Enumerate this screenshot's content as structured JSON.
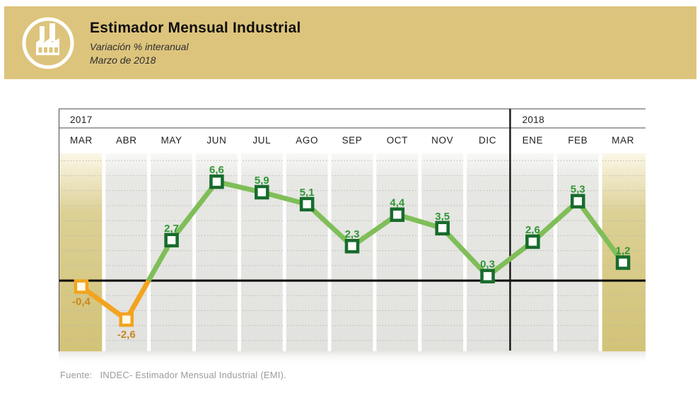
{
  "header": {
    "title": "Estimador Mensual Industrial",
    "subtitle": "Variación % interanual",
    "period": "Marzo de 2018",
    "banner_color": "#DDC47D",
    "icon": "factory-icon"
  },
  "chart_data": {
    "type": "line",
    "title": "Estimador Mensual Industrial",
    "subtitle": "Variación % interanual",
    "unit": "%",
    "categories": [
      "MAR",
      "ABR",
      "MAY",
      "JUN",
      "JUL",
      "AGO",
      "SEP",
      "OCT",
      "NOV",
      "DIC",
      "ENE",
      "FEB",
      "MAR"
    ],
    "year_groups": [
      {
        "label": "2017",
        "months": [
          "MAR",
          "ABR",
          "MAY",
          "JUN",
          "JUL",
          "AGO",
          "SEP",
          "OCT",
          "NOV",
          "DIC"
        ]
      },
      {
        "label": "2018",
        "months": [
          "ENE",
          "FEB",
          "MAR"
        ]
      }
    ],
    "values": [
      -0.4,
      -2.6,
      2.7,
      6.6,
      5.9,
      5.1,
      2.3,
      4.4,
      3.5,
      0.3,
      2.6,
      5.3,
      1.2
    ],
    "ylim": [
      -4.7,
      8.5
    ],
    "grid": true,
    "grid_interval": 1,
    "zero_line": true,
    "legend": "none",
    "highlight_columns": [
      0,
      12
    ],
    "colors": {
      "positive_line": "#7FBE58",
      "negative_line": "#F2A41F",
      "marker_border_positive": "#176B2C",
      "marker_border_negative": "#F2A41F",
      "marker_fill_positive": "#FDFEFB",
      "marker_fill_negative": "#FFFAE8",
      "label_positive": "#2F9634",
      "label_negative": "#C8861D",
      "highlight_band": "#D2C377",
      "regular_band": "#E4E4E1"
    }
  },
  "footer": {
    "source_label": "Fuente:",
    "source_text": "INDEC- Estimador Mensual Industrial (EMI)."
  }
}
